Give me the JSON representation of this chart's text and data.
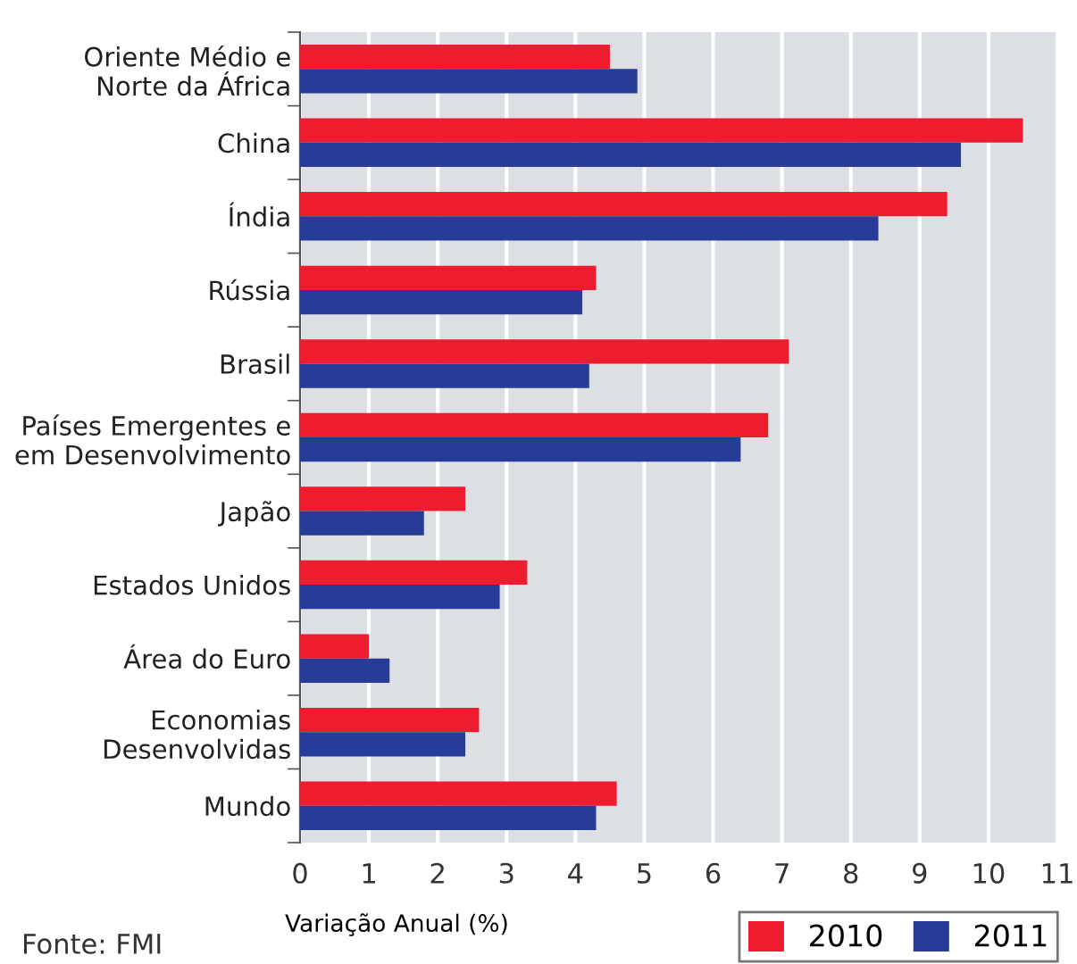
{
  "chart_data": {
    "type": "bar",
    "orientation": "horizontal",
    "xlabel": "Variação Anual (%)",
    "categories": [
      "Oriente Médio e\nNorte da África",
      "China",
      "Índia",
      "Rússia",
      "Brasil",
      "Países Emergentes e\nem Desenvolvimento",
      "Japão",
      "Estados Unidos",
      "Área do Euro",
      "Economias\nDesenvolvidas",
      "Mundo"
    ],
    "series": [
      {
        "name": "2010",
        "color": "#ed1c2e",
        "values": [
          4.5,
          10.5,
          9.4,
          4.3,
          7.1,
          6.8,
          2.4,
          3.3,
          1.0,
          2.6,
          4.6
        ]
      },
      {
        "name": "2011",
        "color": "#263c97",
        "values": [
          4.9,
          9.6,
          8.4,
          4.1,
          4.2,
          6.4,
          1.8,
          2.9,
          1.3,
          2.4,
          4.3
        ]
      }
    ],
    "xlim": [
      0,
      11
    ],
    "xticks": [
      0,
      1,
      2,
      3,
      4,
      5,
      6,
      7,
      8,
      9,
      10,
      11
    ],
    "grid": "x",
    "legend": "bottom right",
    "annotations": [
      "Fonte: FMI"
    ]
  }
}
